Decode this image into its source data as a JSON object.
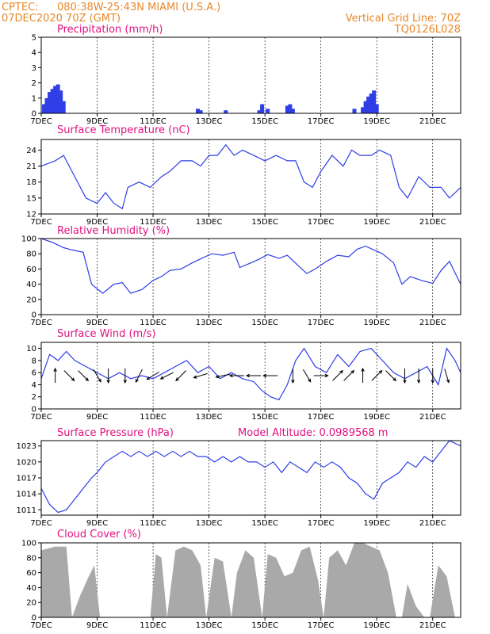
{
  "header": {
    "source": "CPTEC:",
    "location": "080:38W-25:43N   MIAMI (U.S.A.)",
    "run": "07DEC2020 70Z (GMT)",
    "grid_note": "Vertical Grid Line: 70Z",
    "code": "TQ0126L028"
  },
  "colors": {
    "header": "#e8882a",
    "title": "#e0117f",
    "series": "#2f3ee6",
    "cloud": "#a9a9a9",
    "wind_arrow": "#000000"
  },
  "x_axis": {
    "ticks": [
      {
        "day": 7,
        "label": "7DEC"
      },
      {
        "day": 9,
        "label": "9DEC"
      },
      {
        "day": 11,
        "label": "11DEC"
      },
      {
        "day": 13,
        "label": "13DEC"
      },
      {
        "day": 15,
        "label": "15DEC"
      },
      {
        "day": 17,
        "label": "17DEC"
      },
      {
        "day": 19,
        "label": "19DEC"
      },
      {
        "day": 21,
        "label": "21DEC"
      }
    ],
    "range": [
      7,
      22
    ]
  },
  "chart_data": [
    {
      "type": "bar",
      "title": "Precipitation (mm/h)",
      "ylim": [
        0,
        5
      ],
      "yticks": [
        0,
        1,
        2,
        3,
        4,
        5
      ],
      "x": [
        7.1,
        7.2,
        7.3,
        7.4,
        7.5,
        7.6,
        7.7,
        7.8,
        12.6,
        12.7,
        13.6,
        14.8,
        14.9,
        15.1,
        15.8,
        15.9,
        16.0,
        18.2,
        18.5,
        18.6,
        18.7,
        18.8,
        18.9,
        19.0
      ],
      "values": [
        0.6,
        1.0,
        1.4,
        1.6,
        1.8,
        1.9,
        1.5,
        0.8,
        0.3,
        0.2,
        0.2,
        0.2,
        0.6,
        0.3,
        0.5,
        0.6,
        0.3,
        0.3,
        0.4,
        0.8,
        1.1,
        1.3,
        1.5,
        0.6
      ]
    },
    {
      "type": "line",
      "title": "Surface Temperature (nC)",
      "ylim": [
        12,
        26
      ],
      "yticks": [
        12,
        15,
        18,
        21,
        24
      ],
      "x": [
        7.0,
        7.5,
        7.8,
        8.2,
        8.6,
        9.0,
        9.3,
        9.6,
        9.9,
        10.1,
        10.5,
        10.9,
        11.3,
        11.6,
        12.0,
        12.4,
        12.7,
        13.0,
        13.3,
        13.6,
        13.9,
        14.2,
        14.6,
        15.0,
        15.4,
        15.8,
        16.1,
        16.4,
        16.7,
        17.0,
        17.4,
        17.8,
        18.1,
        18.4,
        18.8,
        19.1,
        19.5,
        19.8,
        20.1,
        20.5,
        20.9,
        21.3,
        21.6,
        22.0
      ],
      "values": [
        21,
        22,
        23,
        19,
        15,
        14,
        16,
        14,
        13,
        17,
        18,
        17,
        19,
        20,
        22,
        22,
        21,
        23,
        23,
        25,
        23,
        24,
        23,
        22,
        23,
        22,
        22,
        18,
        17,
        20,
        23,
        21,
        24,
        23,
        23,
        24,
        23,
        17,
        15,
        19,
        17,
        17,
        15,
        17
      ]
    },
    {
      "type": "line",
      "title": "Relative Humidity (%)",
      "ylim": [
        0,
        100
      ],
      "yticks": [
        0,
        20,
        40,
        60,
        80,
        100
      ],
      "x": [
        7.0,
        7.4,
        7.8,
        8.1,
        8.5,
        8.8,
        9.0,
        9.2,
        9.6,
        9.9,
        10.2,
        10.6,
        11.0,
        11.3,
        11.6,
        12.0,
        12.4,
        12.8,
        13.1,
        13.5,
        13.9,
        14.1,
        14.5,
        14.8,
        15.1,
        15.5,
        15.8,
        16.2,
        16.5,
        16.8,
        17.2,
        17.6,
        18.0,
        18.3,
        18.6,
        18.9,
        19.2,
        19.6,
        19.9,
        20.2,
        20.6,
        21.0,
        21.3,
        21.6,
        22.0
      ],
      "values": [
        100,
        95,
        88,
        85,
        82,
        40,
        34,
        28,
        40,
        42,
        28,
        33,
        45,
        50,
        58,
        60,
        68,
        75,
        80,
        78,
        82,
        62,
        68,
        73,
        79,
        74,
        78,
        64,
        54,
        60,
        70,
        78,
        76,
        86,
        90,
        85,
        80,
        68,
        40,
        50,
        45,
        41,
        58,
        70,
        40
      ]
    },
    {
      "type": "line",
      "title": "Surface Wind (m/s)",
      "ylim": [
        0,
        11
      ],
      "yticks": [
        0,
        2,
        4,
        6,
        8,
        10
      ],
      "x": [
        7.0,
        7.3,
        7.6,
        7.9,
        8.2,
        8.6,
        9.0,
        9.4,
        9.8,
        10.2,
        10.6,
        11.0,
        11.4,
        11.8,
        12.2,
        12.6,
        13.0,
        13.4,
        13.8,
        14.2,
        14.6,
        14.9,
        15.2,
        15.5,
        15.8,
        16.1,
        16.4,
        16.8,
        17.2,
        17.6,
        18.0,
        18.4,
        18.8,
        19.2,
        19.6,
        20.0,
        20.4,
        20.8,
        21.2,
        21.5,
        21.8,
        22.0
      ],
      "values": [
        5,
        9,
        8,
        9.5,
        8,
        7,
        6,
        5,
        6,
        5,
        5.5,
        5,
        6,
        7,
        8,
        6,
        7,
        5,
        6,
        5,
        4.5,
        3,
        2,
        1.5,
        4,
        8,
        10,
        7,
        6,
        9,
        7,
        9.5,
        10,
        8,
        6,
        5,
        6,
        7,
        4,
        10,
        8,
        6
      ],
      "arrows": [
        {
          "x": 7.5,
          "u": 0,
          "v": 1
        },
        {
          "x": 8.0,
          "u": 1,
          "v": -1
        },
        {
          "x": 8.5,
          "u": 1,
          "v": -1
        },
        {
          "x": 9.0,
          "u": 0.6,
          "v": -1
        },
        {
          "x": 9.4,
          "u": 0,
          "v": -1
        },
        {
          "x": 10.0,
          "u": 0,
          "v": -1
        },
        {
          "x": 10.5,
          "u": -0.5,
          "v": -1
        },
        {
          "x": 11.0,
          "u": -1,
          "v": -0.6
        },
        {
          "x": 11.5,
          "u": -1,
          "v": -0.5
        },
        {
          "x": 12.0,
          "u": -1,
          "v": -1
        },
        {
          "x": 12.7,
          "u": -1,
          "v": -0.3
        },
        {
          "x": 13.5,
          "u": -1,
          "v": -0.2
        },
        {
          "x": 14.0,
          "u": -1,
          "v": 0
        },
        {
          "x": 14.6,
          "u": -1,
          "v": 0
        },
        {
          "x": 15.2,
          "u": -1,
          "v": 0
        },
        {
          "x": 16.0,
          "u": 0,
          "v": -1
        },
        {
          "x": 16.5,
          "u": 0.6,
          "v": -1
        },
        {
          "x": 17.0,
          "u": 1,
          "v": 0
        },
        {
          "x": 17.6,
          "u": 1,
          "v": 1
        },
        {
          "x": 18.0,
          "u": 1,
          "v": 1
        },
        {
          "x": 18.5,
          "u": 0,
          "v": 1
        },
        {
          "x": 19.0,
          "u": 1,
          "v": 1
        },
        {
          "x": 19.5,
          "u": 1,
          "v": -1
        },
        {
          "x": 20.0,
          "u": 0,
          "v": -1
        },
        {
          "x": 20.5,
          "u": 0,
          "v": -1
        },
        {
          "x": 21.0,
          "u": 0,
          "v": -1
        },
        {
          "x": 21.5,
          "u": 0.3,
          "v": -1
        }
      ]
    },
    {
      "type": "line",
      "title": "Surface Pressure (hPa)",
      "subtitle": "Model Altitude: 0.0989568 m",
      "ylim": [
        1010,
        1024
      ],
      "yticks": [
        1011,
        1014,
        1017,
        1020,
        1023
      ],
      "x": [
        7.0,
        7.3,
        7.6,
        7.9,
        8.2,
        8.5,
        8.8,
        9.0,
        9.3,
        9.6,
        9.9,
        10.2,
        10.5,
        10.8,
        11.1,
        11.4,
        11.7,
        12.0,
        12.3,
        12.6,
        12.9,
        13.2,
        13.5,
        13.8,
        14.1,
        14.4,
        14.7,
        15.0,
        15.3,
        15.6,
        15.9,
        16.2,
        16.5,
        16.8,
        17.1,
        17.4,
        17.7,
        18.0,
        18.3,
        18.6,
        18.9,
        19.2,
        19.5,
        19.8,
        20.1,
        20.4,
        20.7,
        21.0,
        21.3,
        21.6,
        22.0
      ],
      "values": [
        1015,
        1012,
        1010.5,
        1011,
        1013,
        1015,
        1017,
        1018,
        1020,
        1021,
        1022,
        1021,
        1022,
        1021,
        1022,
        1021,
        1022,
        1021,
        1022,
        1021,
        1021,
        1020,
        1021,
        1020,
        1021,
        1020,
        1020,
        1019,
        1020,
        1018,
        1020,
        1019,
        1018,
        1020,
        1019,
        1020,
        1019,
        1017,
        1016,
        1014,
        1013,
        1016,
        1017,
        1018,
        1020,
        1019,
        1021,
        1020,
        1022,
        1024,
        1023
      ]
    },
    {
      "type": "area",
      "title": "Cloud Cover (%)",
      "ylim": [
        0,
        100
      ],
      "yticks": [
        0,
        20,
        40,
        60,
        80,
        100
      ],
      "x": [
        7.0,
        7.5,
        7.9,
        8.1,
        8.4,
        8.7,
        8.9,
        9.1,
        9.5,
        10.0,
        10.5,
        10.9,
        11.1,
        11.3,
        11.5,
        11.8,
        12.1,
        12.4,
        12.7,
        12.9,
        13.2,
        13.5,
        13.8,
        14.0,
        14.3,
        14.6,
        14.9,
        15.1,
        15.4,
        15.7,
        16.0,
        16.3,
        16.6,
        16.9,
        17.1,
        17.3,
        17.6,
        17.9,
        18.2,
        18.5,
        18.8,
        19.1,
        19.4,
        19.7,
        19.9,
        20.1,
        20.4,
        20.7,
        20.9,
        21.2,
        21.5,
        21.8,
        22.0
      ],
      "values": [
        90,
        95,
        95,
        0,
        30,
        55,
        70,
        0,
        0,
        0,
        0,
        0,
        85,
        80,
        0,
        90,
        95,
        90,
        70,
        0,
        80,
        75,
        0,
        60,
        90,
        80,
        0,
        85,
        80,
        55,
        60,
        90,
        95,
        50,
        0,
        80,
        90,
        70,
        100,
        100,
        95,
        90,
        60,
        0,
        0,
        45,
        15,
        0,
        0,
        70,
        55,
        0,
        0
      ]
    }
  ]
}
